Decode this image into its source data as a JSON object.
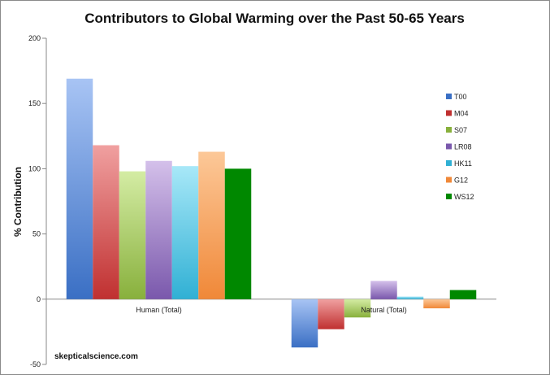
{
  "chart_data": {
    "type": "bar",
    "title": "Contributors to Global Warming over the Past 50-65 Years",
    "xlabel": "",
    "ylabel": "% Contribution",
    "ylim": [
      -50,
      200
    ],
    "yticks": [
      -50,
      0,
      50,
      100,
      150,
      200
    ],
    "grid": false,
    "legend_position": "right",
    "categories": [
      "Human (Total)",
      "Natural (Total)"
    ],
    "series": [
      {
        "name": "T00",
        "values": [
          169,
          -37
        ],
        "color_top": "#a8c4f4",
        "color_bottom": "#3a6fc4"
      },
      {
        "name": "M04",
        "values": [
          118,
          -23
        ],
        "color_top": "#f0a0a0",
        "color_bottom": "#c03030"
      },
      {
        "name": "S07",
        "values": [
          98,
          -14
        ],
        "color_top": "#d4eca4",
        "color_bottom": "#88b03c"
      },
      {
        "name": "LR08",
        "values": [
          106,
          14
        ],
        "color_top": "#d4c0ea",
        "color_bottom": "#7a58ac"
      },
      {
        "name": "HK11",
        "values": [
          102,
          2
        ],
        "color_top": "#a8e8f8",
        "color_bottom": "#30b0d4"
      },
      {
        "name": "G12",
        "values": [
          113,
          -7
        ],
        "color_top": "#fcc898",
        "color_bottom": "#f08838"
      },
      {
        "name": "WS12",
        "values": [
          100,
          7
        ],
        "color_top": "#008800",
        "color_bottom": "#008800"
      }
    ]
  },
  "credit": "skepticalscience.com"
}
